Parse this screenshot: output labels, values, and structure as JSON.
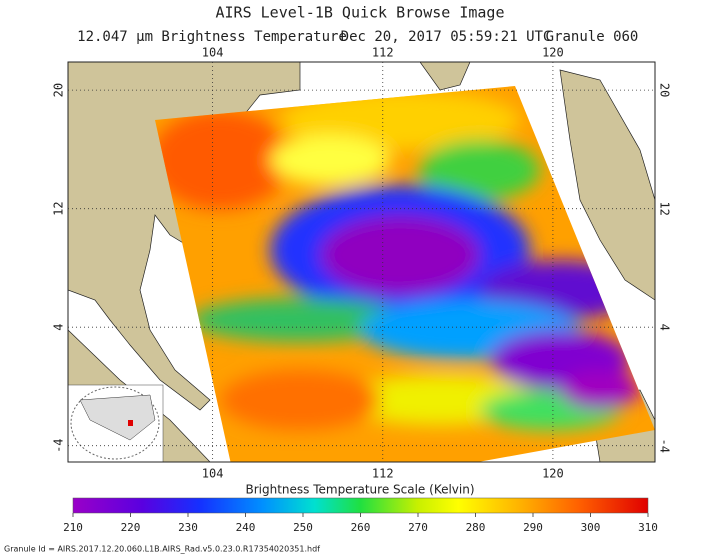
{
  "header": {
    "title": "AIRS Level-1B Quick Browse Image",
    "subtitle": [
      "12.047 µm Brightness Temperature",
      "Dec 20, 2017 05:59:21 UTC",
      "Granule 060"
    ]
  },
  "map": {
    "lon_range": [
      97.2,
      124.8
    ],
    "lat_range": [
      -5.1,
      21.9
    ],
    "lon_ticks": [
      104,
      112,
      120
    ],
    "lat_ticks": [
      20,
      12,
      4,
      -4
    ]
  },
  "colorbar": {
    "title": "Brightness Temperature Scale (Kelvin)",
    "range": [
      210,
      310
    ],
    "ticks": [
      210,
      220,
      230,
      240,
      250,
      260,
      270,
      280,
      290,
      300,
      310
    ]
  },
  "footer": {
    "granule_id": "Granule Id = AIRS.2017.12.20.060.L1B.AIRS_Rad.v5.0.23.0.R17354020351.hdf"
  }
}
